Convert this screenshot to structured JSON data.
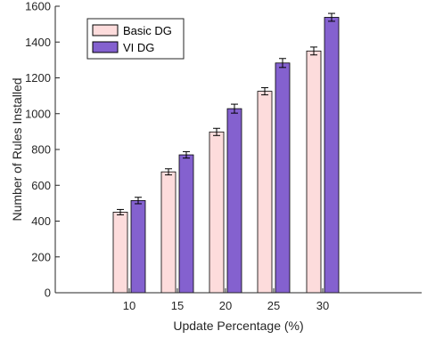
{
  "chart_data": {
    "type": "bar",
    "xlabel": "Update Percentage (%)",
    "ylabel": "Number of Rules Installed",
    "categories": [
      "10",
      "15",
      "20",
      "25",
      "30"
    ],
    "ylim": [
      0,
      1600
    ],
    "yticks": [
      "0",
      "200",
      "400",
      "600",
      "800",
      "1000",
      "1200",
      "1400",
      "1600"
    ],
    "series": [
      {
        "name": "Basic DG",
        "values": [
          450,
          675,
          898,
          1125,
          1350
        ],
        "errors": [
          15,
          17,
          20,
          20,
          22
        ],
        "color": "#fddcdc"
      },
      {
        "name": "VI DG",
        "values": [
          515,
          770,
          1028,
          1283,
          1538
        ],
        "errors": [
          18,
          18,
          25,
          25,
          22
        ],
        "color": "#8461cf"
      }
    ],
    "legend": "top-left",
    "grid": false
  }
}
